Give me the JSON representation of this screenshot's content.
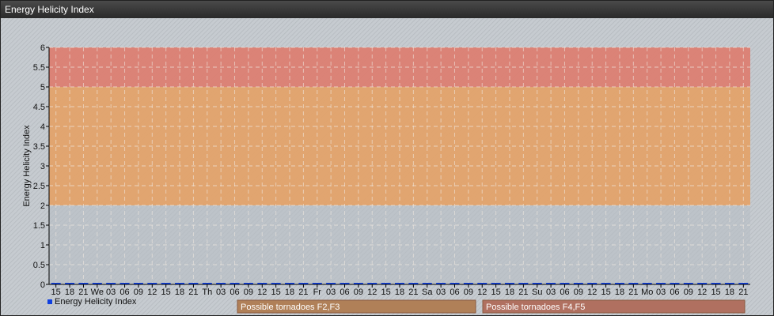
{
  "window": {
    "title": "Energy Helicity Index"
  },
  "chart_data": {
    "type": "line",
    "title": "",
    "ylabel": "Energy Helicity Index",
    "xlabel": "",
    "ylim": [
      0,
      6
    ],
    "yticks": [
      "0",
      "0.5",
      "1",
      "1.5",
      "2",
      "2.5",
      "3",
      "3.5",
      "4",
      "4.5",
      "5",
      "5.5",
      "6"
    ],
    "x": [
      "15",
      "18",
      "21",
      "We",
      "03",
      "06",
      "09",
      "12",
      "15",
      "18",
      "21",
      "Th",
      "03",
      "06",
      "09",
      "12",
      "15",
      "18",
      "21",
      "Fr",
      "03",
      "06",
      "09",
      "12",
      "15",
      "18",
      "21",
      "Sa",
      "03",
      "06",
      "09",
      "12",
      "15",
      "18",
      "21",
      "Su",
      "03",
      "06",
      "09",
      "12",
      "15",
      "18",
      "21",
      "Mo",
      "03",
      "06",
      "09",
      "12",
      "15",
      "18",
      "21"
    ],
    "series": [
      {
        "name": "Energy Helicity Index",
        "color": "#1040e0",
        "values": [
          0,
          0,
          0,
          0,
          0,
          0,
          0,
          0,
          0,
          0,
          0,
          0,
          0,
          0,
          0,
          0,
          0,
          0,
          0,
          0,
          0,
          0,
          0,
          0,
          0,
          0,
          0,
          0,
          0,
          0,
          0,
          0,
          0,
          0,
          0,
          0,
          0,
          0,
          0,
          0,
          0,
          0,
          0,
          0,
          0,
          0,
          0,
          0,
          0,
          0,
          0
        ]
      }
    ],
    "bands": [
      {
        "from": 2,
        "to": 5,
        "label": "Possible tornadoes F2,F3",
        "color": "#e8a060",
        "legend_color": "#b08058"
      },
      {
        "from": 5,
        "to": 6,
        "label": "Possible tornadoes F4,F5",
        "color": "#e07868",
        "legend_color": "#b07060"
      }
    ],
    "grid": true,
    "legend": "bottom-left"
  }
}
